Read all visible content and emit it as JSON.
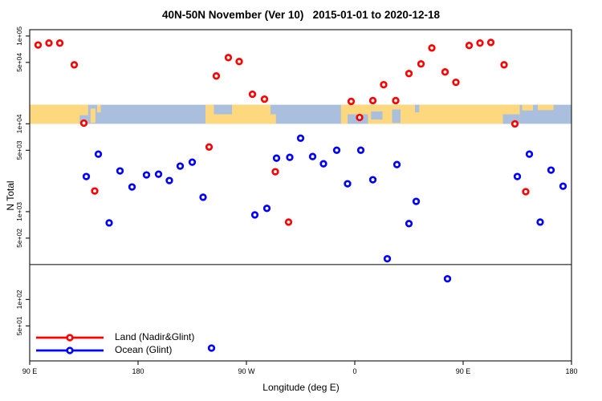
{
  "title": {
    "text": "40N-50N November (Ver 10)   2015-01-01 to 2020-12-18"
  },
  "axes": {
    "x": {
      "label": "Longitude (deg E)",
      "ticks": [
        {
          "v": 90,
          "label": "90 E"
        },
        {
          "v": 180,
          "label": "180"
        },
        {
          "v": 270,
          "label": "90 W"
        },
        {
          "v": 360,
          "label": "0"
        },
        {
          "v": 450,
          "label": "90 E"
        },
        {
          "v": 540,
          "label": "180"
        }
      ]
    },
    "y": {
      "label": "N Total",
      "ticks": [
        {
          "v": 100000,
          "label": "1e+05"
        },
        {
          "v": 50000,
          "label": "5e+04"
        },
        {
          "v": 10000,
          "label": "1e+04"
        },
        {
          "v": 5000,
          "label": "5e+03"
        },
        {
          "v": 1000,
          "label": "1e+03"
        },
        {
          "v": 500,
          "label": "5e+02"
        },
        {
          "v": 100,
          "label": "1e+02"
        },
        {
          "v": 50,
          "label": "5e+01"
        }
      ]
    }
  },
  "legend": {
    "items": [
      {
        "label": "Land (Nadir&Glint)",
        "color": "#ff0000"
      },
      {
        "label": "Ocean (Glint)",
        "color": "#0000ff"
      }
    ]
  },
  "colors": {
    "land_points": "#ff0000",
    "ocean_points": "#0000ff",
    "band_land": "#fed87e",
    "band_ocean": "#a9bfdd",
    "axis": "#000000"
  },
  "chart_data": {
    "type": "scatter",
    "title": "40N-50N November (Ver 10)",
    "subtitle": "2015-01-01 to 2020-12-18",
    "xlabel": "Longitude (deg E)",
    "ylabel": "N Total",
    "x_unit": "degrees east, unwrapped from 90E around the globe to 180 (90 to 540)",
    "xlim": [
      90,
      540
    ],
    "ylim": [
      20,
      118000
    ],
    "yscale": "log",
    "grid": false,
    "threshold_line_n": 250,
    "map_band": {
      "n_range": [
        10000,
        16500
      ],
      "land_color": "#fed87e",
      "ocean_color": "#a9bfdd",
      "land_segments": [
        [
          90,
          138.5
        ],
        [
          236,
          290
        ],
        [
          348.5,
          497
        ]
      ],
      "ocean_inlets": [
        [
          131.5,
          138.5,
          0.55,
          1
        ],
        [
          243,
          258,
          0,
          0.5
        ],
        [
          354,
          371,
          0.5,
          1
        ],
        [
          373.5,
          383,
          0.35,
          0.78
        ],
        [
          391,
          398,
          0.25,
          0.95
        ],
        [
          410,
          413.5,
          0,
          0.4
        ],
        [
          483,
          497,
          0.5,
          1
        ]
      ],
      "land_islands": [
        [
          140.5,
          144.5,
          0.2,
          0.95
        ],
        [
          146,
          149,
          0,
          0.4
        ],
        [
          258,
          262,
          0,
          0.3
        ],
        [
          290,
          294.5,
          0.5,
          1
        ],
        [
          499,
          508,
          0,
          0.3
        ],
        [
          512,
          525,
          0,
          0.28
        ]
      ]
    },
    "series": [
      {
        "name": "Land (Nadir&Glint)",
        "color": "#ff0000",
        "points": [
          [
            97,
            79000
          ],
          [
            106,
            83000
          ],
          [
            115,
            83000
          ],
          [
            127,
            47000
          ],
          [
            135,
            10200
          ],
          [
            144,
            1720
          ],
          [
            239,
            5450
          ],
          [
            245,
            35100
          ],
          [
            255,
            56800
          ],
          [
            264,
            51200
          ],
          [
            275,
            21700
          ],
          [
            285,
            19100
          ],
          [
            294,
            2850
          ],
          [
            305,
            762
          ],
          [
            357,
            18000
          ],
          [
            364,
            11800
          ],
          [
            375,
            18400
          ],
          [
            384,
            27900
          ],
          [
            394,
            18400
          ],
          [
            405,
            37400
          ],
          [
            415,
            48100
          ],
          [
            424,
            73100
          ],
          [
            435,
            39000
          ],
          [
            444,
            29700
          ],
          [
            455,
            78000
          ],
          [
            464,
            83000
          ],
          [
            473,
            84500
          ],
          [
            484,
            47000
          ],
          [
            493,
            10000
          ],
          [
            502,
            1690
          ]
        ]
      },
      {
        "name": "Ocean (Glint)",
        "color": "#0000ff",
        "points": [
          [
            137,
            2510
          ],
          [
            147,
            4520
          ],
          [
            156,
            746
          ],
          [
            165,
            2910
          ],
          [
            175,
            1910
          ],
          [
            187,
            2620
          ],
          [
            197,
            2670
          ],
          [
            206,
            2260
          ],
          [
            215,
            3300
          ],
          [
            225,
            3660
          ],
          [
            234,
            1460
          ],
          [
            241,
            28
          ],
          [
            277,
            920
          ],
          [
            287,
            1090
          ],
          [
            295,
            4070
          ],
          [
            306,
            4150
          ],
          [
            315,
            6860
          ],
          [
            325,
            4240
          ],
          [
            334,
            3510
          ],
          [
            345,
            5010
          ],
          [
            354,
            2080
          ],
          [
            365,
            5010
          ],
          [
            375,
            2310
          ],
          [
            387,
            291
          ],
          [
            395,
            3440
          ],
          [
            405,
            731
          ],
          [
            411,
            1310
          ],
          [
            437,
            172
          ],
          [
            495,
            2510
          ],
          [
            505,
            4520
          ],
          [
            514,
            762
          ],
          [
            523,
            2970
          ],
          [
            533,
            1950
          ]
        ]
      }
    ],
    "legend_position": "bottom-left"
  }
}
